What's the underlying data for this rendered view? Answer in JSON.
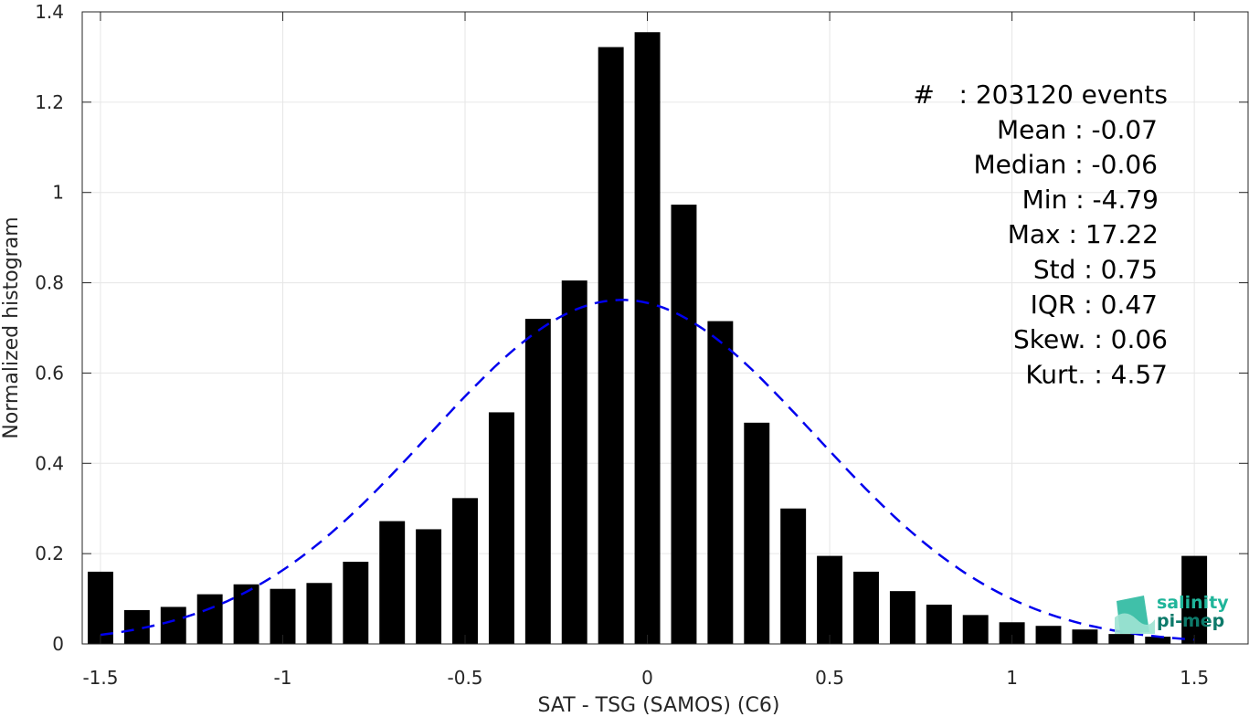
{
  "chart_data": {
    "type": "bar",
    "xlabel": "SAT - TSG (SAMOS) (C6)",
    "ylabel": "Normalized histogram",
    "xlim": [
      -1.55,
      1.65
    ],
    "ylim": [
      0,
      1.4
    ],
    "x_ticks": [
      -1.5,
      -1,
      -0.5,
      0,
      0.5,
      1,
      1.5
    ],
    "x_tick_labels": [
      "-1.5",
      "-1",
      "-0.5",
      "0",
      "0.5",
      "1",
      "1.5"
    ],
    "y_ticks": [
      0,
      0.2,
      0.4,
      0.6,
      0.8,
      1,
      1.2,
      1.4
    ],
    "y_tick_labels": [
      "0",
      "0.2",
      "0.4",
      "0.6",
      "0.8",
      "1",
      "1.2",
      "1.4"
    ],
    "grid": true,
    "bar_width": 0.07,
    "bars": [
      {
        "x": -1.5,
        "value": 0.16
      },
      {
        "x": -1.4,
        "value": 0.075
      },
      {
        "x": -1.3,
        "value": 0.082
      },
      {
        "x": -1.2,
        "value": 0.11
      },
      {
        "x": -1.1,
        "value": 0.132
      },
      {
        "x": -1.0,
        "value": 0.122
      },
      {
        "x": -0.9,
        "value": 0.135
      },
      {
        "x": -0.8,
        "value": 0.182
      },
      {
        "x": -0.7,
        "value": 0.272
      },
      {
        "x": -0.6,
        "value": 0.254
      },
      {
        "x": -0.5,
        "value": 0.323
      },
      {
        "x": -0.4,
        "value": 0.513
      },
      {
        "x": -0.3,
        "value": 0.72
      },
      {
        "x": -0.2,
        "value": 0.805
      },
      {
        "x": -0.1,
        "value": 1.322
      },
      {
        "x": 0.0,
        "value": 1.355
      },
      {
        "x": 0.1,
        "value": 0.973
      },
      {
        "x": 0.2,
        "value": 0.715
      },
      {
        "x": 0.3,
        "value": 0.49
      },
      {
        "x": 0.4,
        "value": 0.3
      },
      {
        "x": 0.5,
        "value": 0.195
      },
      {
        "x": 0.6,
        "value": 0.16
      },
      {
        "x": 0.7,
        "value": 0.117
      },
      {
        "x": 0.8,
        "value": 0.087
      },
      {
        "x": 0.9,
        "value": 0.064
      },
      {
        "x": 1.0,
        "value": 0.048
      },
      {
        "x": 1.1,
        "value": 0.04
      },
      {
        "x": 1.2,
        "value": 0.032
      },
      {
        "x": 1.3,
        "value": 0.022
      },
      {
        "x": 1.4,
        "value": 0.016
      },
      {
        "x": 1.5,
        "value": 0.195
      }
    ],
    "fit_curve": {
      "type": "gaussian",
      "mean": -0.07,
      "std": 0.53,
      "peak": 0.762,
      "x_range": [
        -1.5,
        1.5
      ],
      "style": "dashed",
      "color": "#0000ee"
    },
    "bar_color": "#000000",
    "stats_lines": [
      "#   : 203120 events",
      "Mean : -0.07",
      "Median : -0.06",
      "Min : -4.79",
      "Max : 17.22",
      "Std : 0.75",
      "IQR : 0.47",
      "Skew. : 0.06",
      "Kurt. : 4.57"
    ]
  },
  "logo": {
    "line1": "salinity",
    "line2": "pi-mep",
    "color1": "#1fb59a",
    "color2": "#0d7a6a"
  }
}
